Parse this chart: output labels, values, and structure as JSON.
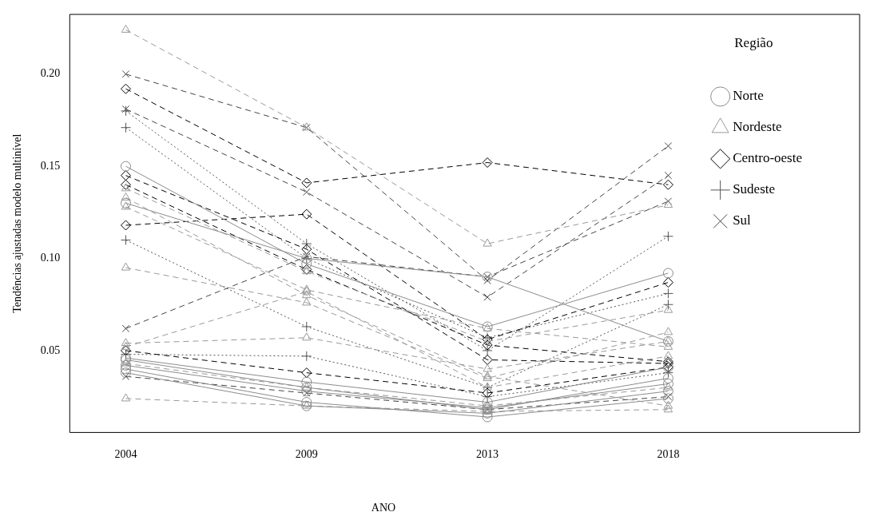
{
  "chart_data": {
    "type": "line",
    "categories": [
      "2004",
      "2009",
      "2013",
      "2018"
    ],
    "xlabel": "ANO",
    "ylabel": "Tendências ajustadas modelo multinível",
    "legend_title": "Região",
    "legend": "top right",
    "grid": false,
    "ylim": [
      0.0056,
      0.2324
    ],
    "yticks": [
      0.05,
      {
        "value": 0.1,
        "label": "0.10"
      },
      0.15,
      {
        "value": 0.2,
        "label": "0.20"
      }
    ],
    "series": [
      {
        "name": "Norte",
        "color": "#8c8c8c",
        "marker": "circle",
        "line_style": "solid",
        "values": [
          0.15,
          0.097,
          0.063,
          0.092
        ]
      },
      {
        "color": "#8c8c8c",
        "marker": "circle",
        "line_style": "solid",
        "values": [
          0.046,
          0.033,
          0.022,
          0.041
        ]
      },
      {
        "color": "#8c8c8c",
        "marker": "circle",
        "line_style": "solid",
        "values": [
          0.13,
          0.1,
          0.09,
          0.055
        ]
      },
      {
        "color": "#8c8c8c",
        "marker": "circle",
        "line_style": "solid",
        "values": [
          0.042,
          0.028,
          0.019,
          0.032
        ]
      },
      {
        "color": "#8c8c8c",
        "marker": "circle",
        "line_style": "solid",
        "values": [
          0.04,
          0.022,
          0.014,
          0.024
        ]
      },
      {
        "color": "#8c8c8c",
        "marker": "circle",
        "line_style": "solid",
        "values": [
          0.045,
          0.03,
          0.018,
          0.035
        ]
      },
      {
        "color": "#8c8c8c",
        "marker": "circle",
        "line_style": "solid",
        "values": [
          0.038,
          0.02,
          0.016,
          0.028
        ]
      },
      {
        "name": "Nordeste",
        "color": "#999999",
        "marker": "triangle",
        "line_style": "dashed",
        "values": [
          0.224,
          0.171,
          0.108,
          0.129
        ]
      },
      {
        "color": "#999999",
        "marker": "triangle",
        "line_style": "dashed",
        "values": [
          0.138,
          0.093,
          0.055,
          0.072
        ]
      },
      {
        "color": "#999999",
        "marker": "triangle",
        "line_style": "dashed",
        "values": [
          0.043,
          0.03,
          0.02,
          0.03
        ]
      },
      {
        "color": "#999999",
        "marker": "triangle",
        "line_style": "dashed",
        "values": [
          0.095,
          0.076,
          0.035,
          0.06
        ]
      },
      {
        "color": "#999999",
        "marker": "triangle",
        "line_style": "dashed",
        "values": [
          0.128,
          0.083,
          0.062,
          0.052
        ]
      },
      {
        "color": "#999999",
        "marker": "triangle",
        "line_style": "dashed",
        "values": [
          0.054,
          0.057,
          0.04,
          0.055
        ]
      },
      {
        "color": "#999999",
        "marker": "triangle",
        "line_style": "dashed",
        "values": [
          0.024,
          0.02,
          0.017,
          0.018
        ]
      },
      {
        "color": "#999999",
        "marker": "triangle",
        "line_style": "dashed",
        "values": [
          0.052,
          0.082,
          0.03,
          0.047
        ]
      },
      {
        "color": "#999999",
        "marker": "triangle",
        "line_style": "dashed",
        "values": [
          0.133,
          0.08,
          0.036,
          0.02
        ]
      },
      {
        "name": "Centro-oeste",
        "color": "#000000",
        "marker": "diamond",
        "line_style": "dashed",
        "values": [
          0.192,
          0.141,
          0.152,
          0.14
        ]
      },
      {
        "color": "#000000",
        "marker": "diamond",
        "line_style": "dashed",
        "values": [
          0.118,
          0.124,
          0.056,
          0.087
        ]
      },
      {
        "color": "#000000",
        "marker": "diamond",
        "line_style": "dashed",
        "values": [
          0.145,
          0.105,
          0.045,
          0.043
        ]
      },
      {
        "color": "#000000",
        "marker": "diamond",
        "line_style": "dashed",
        "values": [
          0.14,
          0.094,
          0.053,
          0.044
        ]
      },
      {
        "color": "#000000",
        "marker": "diamond",
        "line_style": "dashed",
        "values": [
          0.05,
          0.038,
          0.027,
          0.041
        ]
      },
      {
        "name": "Sudeste",
        "color": "#555555",
        "marker": "cross",
        "line_style": "dotted",
        "values": [
          0.18,
          0.108,
          0.05,
          0.112
        ]
      },
      {
        "color": "#555555",
        "marker": "cross",
        "line_style": "dotted",
        "values": [
          0.171,
          0.1,
          0.057,
          0.081
        ]
      },
      {
        "color": "#555555",
        "marker": "cross",
        "line_style": "dotted",
        "values": [
          0.11,
          0.063,
          0.03,
          0.075
        ]
      },
      {
        "color": "#555555",
        "marker": "cross",
        "line_style": "dotted",
        "values": [
          0.048,
          0.047,
          0.025,
          0.038
        ]
      },
      {
        "name": "Sul",
        "color": "#444444",
        "marker": "x",
        "line_style": "dashed",
        "values": [
          0.2,
          0.171,
          0.088,
          0.161
        ]
      },
      {
        "color": "#444444",
        "marker": "x",
        "line_style": "dashed",
        "values": [
          0.181,
          0.136,
          0.079,
          0.145
        ]
      },
      {
        "color": "#444444",
        "marker": "x",
        "line_style": "dashed",
        "values": [
          0.062,
          0.101,
          0.09,
          0.131
        ]
      },
      {
        "color": "#444444",
        "marker": "x",
        "line_style": "dashed",
        "values": [
          0.036,
          0.027,
          0.018,
          0.025
        ]
      }
    ]
  }
}
